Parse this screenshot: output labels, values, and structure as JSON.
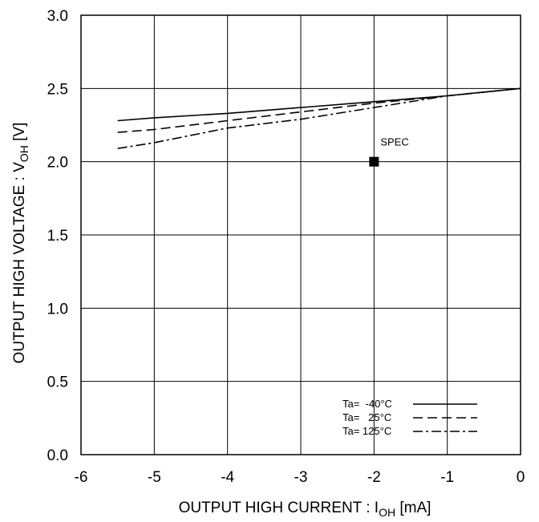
{
  "chart_data": {
    "type": "line",
    "title": "",
    "xlabel": {
      "main": "OUTPUT HIGH CURRENT : I",
      "sub": "OH",
      "unit": " [mA]"
    },
    "ylabel": {
      "main": "OUTPUT HIGH VOLTAGE : V",
      "sub": "OH",
      "unit": " [V]"
    },
    "xlim": [
      -6,
      0
    ],
    "ylim": [
      0.0,
      3.0
    ],
    "xticks": [
      -6,
      -5,
      -4,
      -3,
      -2,
      -1,
      0
    ],
    "yticks": [
      0.0,
      0.5,
      1.0,
      1.5,
      2.0,
      2.5,
      3.0
    ],
    "xtick_labels": [
      "-6",
      "-5",
      "-4",
      "-3",
      "-2",
      "-1",
      "0"
    ],
    "ytick_labels": [
      "0.0",
      "0.5",
      "1.0",
      "1.5",
      "2.0",
      "2.5",
      "3.0"
    ],
    "grid": true,
    "legend_position": "bottom-right",
    "series": [
      {
        "name": "Ta=  -40°C",
        "dash": "solid",
        "x": [
          -5.5,
          -5,
          -4,
          -3,
          -2,
          -1,
          0
        ],
        "y": [
          2.28,
          2.3,
          2.33,
          2.37,
          2.41,
          2.45,
          2.5
        ]
      },
      {
        "name": "Ta=   25°C",
        "dash": "dashed",
        "x": [
          -5.5,
          -5,
          -4,
          -3,
          -2,
          -1,
          0
        ],
        "y": [
          2.2,
          2.22,
          2.28,
          2.34,
          2.4,
          2.45,
          2.5
        ]
      },
      {
        "name": "Ta= 125°C",
        "dash": "dashdot",
        "x": [
          -5.5,
          -5,
          -4,
          -3,
          -2,
          -1,
          0
        ],
        "y": [
          2.09,
          2.13,
          2.23,
          2.29,
          2.37,
          2.45,
          2.5
        ]
      }
    ],
    "annotations": [
      {
        "label": "SPEC",
        "x": -2.0,
        "y": 2.0,
        "marker": "square"
      }
    ]
  }
}
